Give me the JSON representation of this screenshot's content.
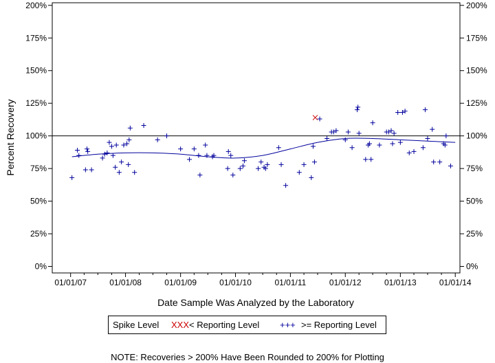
{
  "chart_data": {
    "type": "scatter",
    "xlabel": "Date Sample Was Analyzed by the Laboratory",
    "ylabel": "Percent Recovery",
    "x_tick_labels": [
      "01/01/07",
      "01/01/08",
      "01/01/09",
      "01/01/10",
      "01/01/11",
      "01/01/12",
      "01/01/13",
      "01/01/14"
    ],
    "y_tick_labels": [
      "0%",
      "25%",
      "50%",
      "75%",
      "100%",
      "125%",
      "150%",
      "175%",
      "200%"
    ],
    "y_ticks": [
      0,
      25,
      50,
      75,
      100,
      125,
      150,
      175,
      200
    ],
    "xlim": [
      "2006-09-01",
      "2014-02-01"
    ],
    "ylim": [
      -5,
      202
    ],
    "reference_line": 100,
    "colors": {
      "below_reporting": "#cc0000",
      "at_or_above_reporting": "#00009c",
      "trend": "#00009c"
    },
    "legend": {
      "title": "Spike Level",
      "below_marker": "XXX",
      "below_label": "< Reporting Level",
      "above_marker": "+++",
      "above_label": ">= Reporting Level"
    },
    "series": [
      {
        "name": "< Reporting Level",
        "marker": "x",
        "points": [
          [
            "2011-06-15",
            114
          ]
        ]
      },
      {
        "name": ">= Reporting Level",
        "marker": "+",
        "points": [
          [
            "2007-01-10",
            68
          ],
          [
            "2007-02-15",
            89
          ],
          [
            "2007-02-25",
            85
          ],
          [
            "2007-04-10",
            74
          ],
          [
            "2007-04-20",
            90
          ],
          [
            "2007-04-25",
            88
          ],
          [
            "2007-05-20",
            74
          ],
          [
            "2007-08-01",
            83
          ],
          [
            "2007-08-15",
            86
          ],
          [
            "2007-09-01",
            87
          ],
          [
            "2007-09-15",
            95
          ],
          [
            "2007-10-01",
            92
          ],
          [
            "2007-10-10",
            85
          ],
          [
            "2007-10-25",
            76
          ],
          [
            "2007-11-01",
            93
          ],
          [
            "2007-11-20",
            72
          ],
          [
            "2007-12-05",
            80
          ],
          [
            "2007-12-20",
            93
          ],
          [
            "2008-01-10",
            94
          ],
          [
            "2008-01-20",
            78
          ],
          [
            "2008-01-25",
            97
          ],
          [
            "2008-02-01",
            106
          ],
          [
            "2008-03-01",
            72
          ],
          [
            "2008-05-01",
            108
          ],
          [
            "2008-08-01",
            97
          ],
          [
            "2008-10-01",
            100
          ],
          [
            "2009-01-01",
            90
          ],
          [
            "2009-03-01",
            82
          ],
          [
            "2009-04-01",
            90
          ],
          [
            "2009-05-01",
            85
          ],
          [
            "2009-05-10",
            70
          ],
          [
            "2009-06-15",
            93
          ],
          [
            "2009-06-25",
            85
          ],
          [
            "2009-08-01",
            84
          ],
          [
            "2009-08-10",
            85
          ],
          [
            "2009-11-10",
            75
          ],
          [
            "2009-11-15",
            88
          ],
          [
            "2009-12-01",
            85
          ],
          [
            "2009-12-15",
            70
          ],
          [
            "2010-02-01",
            75
          ],
          [
            "2010-02-20",
            77
          ],
          [
            "2010-03-01",
            81
          ],
          [
            "2010-06-01",
            75
          ],
          [
            "2010-06-20",
            80
          ],
          [
            "2010-07-10",
            76
          ],
          [
            "2010-07-20",
            75
          ],
          [
            "2010-08-01",
            78
          ],
          [
            "2010-10-15",
            91
          ],
          [
            "2010-11-01",
            78
          ],
          [
            "2010-12-01",
            62
          ],
          [
            "2011-03-01",
            72
          ],
          [
            "2011-04-01",
            78
          ],
          [
            "2011-05-20",
            68
          ],
          [
            "2011-06-01",
            92
          ],
          [
            "2011-06-10",
            80
          ],
          [
            "2011-07-15",
            113
          ],
          [
            "2011-09-01",
            98
          ],
          [
            "2011-10-01",
            103
          ],
          [
            "2011-10-15",
            103
          ],
          [
            "2011-11-01",
            104
          ],
          [
            "2012-01-01",
            97
          ],
          [
            "2012-01-20",
            103
          ],
          [
            "2012-02-15",
            91
          ],
          [
            "2012-03-20",
            120
          ],
          [
            "2012-03-25",
            122
          ],
          [
            "2012-04-01",
            102
          ],
          [
            "2012-05-15",
            82
          ],
          [
            "2012-06-01",
            93
          ],
          [
            "2012-06-10",
            94
          ],
          [
            "2012-06-20",
            82
          ],
          [
            "2012-07-01",
            110
          ],
          [
            "2012-08-15",
            93
          ],
          [
            "2012-10-01",
            103
          ],
          [
            "2012-10-15",
            103
          ],
          [
            "2012-11-01",
            104
          ],
          [
            "2012-11-10",
            94
          ],
          [
            "2012-11-20",
            102
          ],
          [
            "2012-12-15",
            118
          ],
          [
            "2013-01-01",
            95
          ],
          [
            "2013-01-15",
            118
          ],
          [
            "2013-02-01",
            119
          ],
          [
            "2013-03-01",
            87
          ],
          [
            "2013-04-01",
            88
          ],
          [
            "2013-06-01",
            91
          ],
          [
            "2013-06-15",
            120
          ],
          [
            "2013-07-01",
            98
          ],
          [
            "2013-08-01",
            105
          ],
          [
            "2013-08-10",
            80
          ],
          [
            "2013-09-20",
            80
          ],
          [
            "2013-10-15",
            94
          ],
          [
            "2013-10-25",
            93
          ],
          [
            "2013-11-01",
            100
          ],
          [
            "2013-12-01",
            77
          ]
        ]
      }
    ],
    "trend_line": [
      [
        "2007-01-10",
        84
      ],
      [
        "2007-07-01",
        86
      ],
      [
        "2008-01-01",
        87
      ],
      [
        "2008-07-01",
        87
      ],
      [
        "2009-01-01",
        86
      ],
      [
        "2009-07-01",
        84
      ],
      [
        "2010-01-01",
        83
      ],
      [
        "2010-07-01",
        85
      ],
      [
        "2011-01-01",
        90
      ],
      [
        "2011-07-01",
        95
      ],
      [
        "2012-01-01",
        98
      ],
      [
        "2012-07-01",
        98
      ],
      [
        "2013-01-01",
        97
      ],
      [
        "2013-07-01",
        96
      ],
      [
        "2014-01-01",
        95
      ]
    ]
  },
  "note": "NOTE: Recoveries > 200% Have Been Rounded to 200% for Plotting"
}
